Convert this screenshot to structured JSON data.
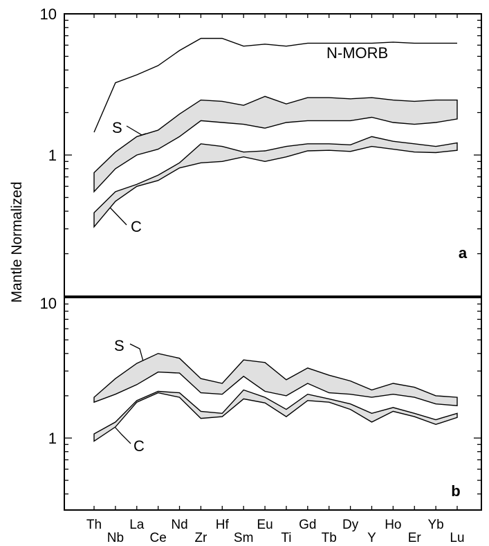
{
  "chart_data": {
    "type": "line",
    "ylabel": "Mantle Normalized",
    "yscale": "log",
    "elements": [
      "Th",
      "Nb",
      "La",
      "Ce",
      "Nd",
      "Zr",
      "Hf",
      "Sm",
      "Eu",
      "Ti",
      "Gd",
      "Tb",
      "Dy",
      "Y",
      "Ho",
      "Er",
      "Yb",
      "Lu"
    ],
    "panels": [
      {
        "label": "a",
        "ylim": [
          0.1,
          10
        ],
        "y_ticks": [
          "10",
          "1"
        ],
        "lines": [
          {
            "name": "N-MORB",
            "values": [
              1.45,
              3.25,
              3.7,
              4.3,
              5.5,
              6.7,
              6.7,
              5.9,
              6.1,
              5.9,
              6.2,
              6.2,
              6.2,
              6.2,
              6.3,
              6.2,
              6.2,
              6.2
            ]
          }
        ],
        "bands": [
          {
            "name": "S",
            "upper": [
              0.75,
              1.05,
              1.35,
              1.5,
              1.95,
              2.45,
              2.4,
              2.25,
              2.6,
              2.3,
              2.55,
              2.55,
              2.5,
              2.55,
              2.45,
              2.4,
              2.45,
              2.45
            ],
            "lower": [
              0.55,
              0.8,
              1.0,
              1.1,
              1.35,
              1.75,
              1.7,
              1.65,
              1.55,
              1.7,
              1.75,
              1.75,
              1.75,
              1.85,
              1.7,
              1.65,
              1.7,
              1.8
            ]
          },
          {
            "name": "C",
            "upper": [
              0.39,
              0.55,
              0.62,
              0.72,
              0.88,
              1.2,
              1.15,
              1.05,
              1.07,
              1.15,
              1.2,
              1.2,
              1.18,
              1.35,
              1.25,
              1.2,
              1.15,
              1.22
            ]
          },
          {
            "name": "C-lower",
            "values": [
              0.31,
              0.47,
              0.6,
              0.66,
              0.81,
              0.88,
              0.9,
              0.97,
              0.9,
              0.97,
              1.07,
              1.08,
              1.06,
              1.15,
              1.1,
              1.05,
              1.04,
              1.08
            ]
          }
        ]
      },
      {
        "label": "b",
        "ylim": [
          0.3,
          10
        ],
        "y_ticks": [
          "10",
          "1"
        ],
        "bands": [
          {
            "name": "S",
            "upper": [
              1.95,
              2.65,
              3.4,
              4.0,
              3.7,
              2.65,
              2.45,
              3.6,
              3.45,
              2.6,
              3.15,
              2.8,
              2.55,
              2.2,
              2.45,
              2.3,
              2.0,
              1.95
            ],
            "lower": [
              1.8,
              2.05,
              2.4,
              2.95,
              2.9,
              2.1,
              2.05,
              2.75,
              2.15,
              2.0,
              2.45,
              2.1,
              2.05,
              1.95,
              2.05,
              1.95,
              1.75,
              1.7
            ]
          },
          {
            "name": "C",
            "upper": [
              1.07,
              1.3,
              1.85,
              2.15,
              2.1,
              1.55,
              1.5,
              2.2,
              1.95,
              1.6,
              2.05,
              1.9,
              1.75,
              1.5,
              1.65,
              1.5,
              1.35,
              1.5
            ],
            "lower": [
              0.95,
              1.2,
              1.8,
              2.1,
              1.95,
              1.38,
              1.42,
              1.9,
              1.78,
              1.42,
              1.85,
              1.8,
              1.6,
              1.3,
              1.55,
              1.42,
              1.25,
              1.4
            ]
          }
        ]
      }
    ],
    "annotations": {
      "nmorb": "N-MORB",
      "s": "S",
      "c": "C",
      "panel_a": "a",
      "panel_b": "b"
    }
  }
}
